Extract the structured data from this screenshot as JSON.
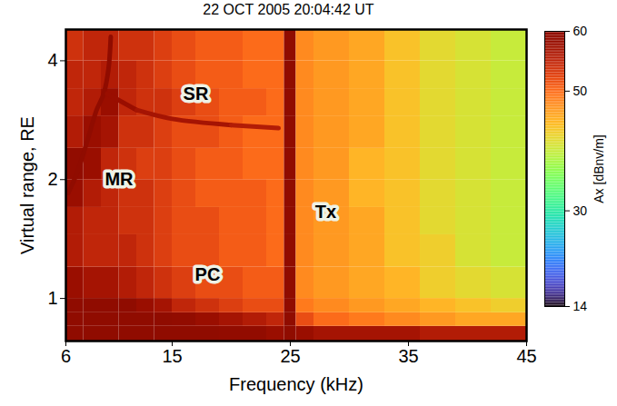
{
  "chart_data": {
    "type": "heatmap",
    "title": "22 OCT 2005 20:04:42 UT",
    "x_label": "Frequency (kHz)",
    "y_label": "Virtual range, RE",
    "xlim": [
      6,
      45
    ],
    "xticks": [
      6,
      15,
      25,
      35,
      45
    ],
    "ylim": [
      0.78,
      4.8
    ],
    "yticks": [
      1,
      2,
      4
    ],
    "log": "y",
    "x_edges": [
      6,
      7.5,
      9,
      10.5,
      12,
      13.5,
      15,
      17,
      19,
      21,
      23,
      24.5,
      25.5,
      27,
      30,
      33,
      36,
      39,
      42,
      45
    ],
    "y_edges": [
      0.78,
      0.85,
      0.92,
      1.0,
      1.2,
      1.45,
      1.7,
      2.0,
      2.4,
      2.9,
      3.4,
      4.0,
      4.8
    ],
    "cells": [
      [
        60,
        60,
        60,
        60,
        60,
        60,
        60,
        60,
        59,
        59,
        58,
        60,
        58,
        57,
        57,
        57,
        56,
        56,
        56
      ],
      [
        60,
        60,
        60,
        60,
        60,
        60,
        59,
        58,
        57,
        56,
        55,
        60,
        52,
        50,
        49,
        48,
        47,
        46,
        46
      ],
      [
        60,
        60,
        60,
        60,
        58,
        57,
        55,
        54,
        53,
        52,
        52,
        60,
        49,
        48,
        47,
        46,
        45,
        44,
        43
      ],
      [
        58,
        57,
        57,
        56,
        55,
        54,
        53,
        52,
        52,
        51,
        51,
        60,
        48,
        47,
        46,
        45,
        43,
        42,
        41
      ],
      [
        56,
        55,
        55,
        55,
        54,
        53,
        52,
        52,
        51,
        51,
        50,
        60,
        48,
        47,
        46,
        44,
        43,
        41,
        40
      ],
      [
        56,
        55,
        55,
        54,
        54,
        53,
        52,
        52,
        51,
        51,
        50,
        60,
        48,
        47,
        46,
        44,
        42,
        41,
        40
      ],
      [
        58,
        56,
        55,
        54,
        54,
        53,
        52,
        51,
        51,
        51,
        50,
        60,
        48,
        47,
        45,
        44,
        42,
        41,
        40
      ],
      [
        59,
        58,
        55,
        54,
        53,
        53,
        52,
        51,
        51,
        50,
        50,
        60,
        48,
        47,
        45,
        44,
        42,
        41,
        40
      ],
      [
        56,
        58,
        57,
        54,
        54,
        53,
        52,
        52,
        51,
        50,
        50,
        60,
        48,
        47,
        46,
        44,
        42,
        41,
        40
      ],
      [
        55,
        56,
        58,
        55,
        54,
        54,
        53,
        52,
        51,
        51,
        50,
        60,
        48,
        47,
        46,
        44,
        42,
        41,
        40
      ],
      [
        55,
        55,
        56,
        55,
        54,
        53,
        52,
        51,
        51,
        50,
        50,
        60,
        48,
        47,
        46,
        44,
        42,
        41,
        40
      ],
      [
        54,
        55,
        55,
        54,
        54,
        53,
        52,
        51,
        51,
        50,
        50,
        60,
        48,
        47,
        46,
        44,
        42,
        41,
        40
      ]
    ],
    "traces": [
      {
        "x": [
          6.2,
          7,
          7.8,
          8.6,
          9.2,
          9.6,
          9.8
        ],
        "y": [
          1.85,
          2.1,
          2.5,
          3.0,
          3.3,
          3.8,
          4.6
        ],
        "values": [
          60,
          60,
          60,
          60,
          60,
          60,
          60
        ]
      },
      {
        "x": [
          9.5,
          12,
          15,
          20,
          24
        ],
        "y": [
          3.3,
          3.0,
          2.85,
          2.75,
          2.7
        ],
        "values": [
          58,
          57,
          57,
          56,
          56
        ]
      }
    ],
    "annotations": [
      {
        "text": "SR",
        "x": 17,
        "y": 3.3
      },
      {
        "text": "MR",
        "x": 10.5,
        "y": 2.0
      },
      {
        "text": "PC",
        "x": 18,
        "y": 1.15
      },
      {
        "text": "Tx",
        "x": 28,
        "y": 1.65
      }
    ],
    "colorbar": {
      "label": "Ax [dBnv/m]",
      "range": [
        14,
        60
      ],
      "ticks": [
        14,
        30,
        50,
        60
      ]
    }
  }
}
